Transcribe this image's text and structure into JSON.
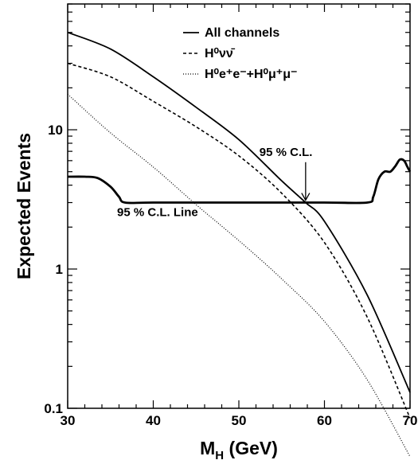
{
  "chart_data": {
    "type": "line",
    "xlabel_main": "M",
    "xlabel_sub": "H",
    "xlabel_rest": " (GeV)",
    "ylabel": "Expected Events",
    "xlim": [
      30,
      70
    ],
    "ylim": [
      0.1,
      80
    ],
    "yscale": "log",
    "grid": false,
    "legend_position": "top-right",
    "x_ticks": [
      30,
      40,
      50,
      60,
      70
    ],
    "x_tick_labels": [
      "30",
      "40",
      "50",
      "60",
      "70"
    ],
    "y_ticks": [
      0.1,
      1,
      10
    ],
    "y_tick_labels": [
      "0.1",
      "1",
      "10"
    ],
    "series": [
      {
        "name": "All channels",
        "style": "solid",
        "x": [
          30,
          35,
          40,
          45,
          50,
          55,
          57.8,
          60,
          65,
          70
        ],
        "y": [
          50,
          38,
          24,
          14.5,
          8.5,
          4.3,
          3.0,
          2.2,
          0.65,
          0.13
        ]
      },
      {
        "name": "H⁰νν̄",
        "style": "dashed",
        "x": [
          30,
          35,
          40,
          45,
          50,
          55,
          60,
          65,
          70
        ],
        "y": [
          30,
          24,
          16,
          10.5,
          6.5,
          3.5,
          1.55,
          0.45,
          0.085
        ]
      },
      {
        "name": "H⁰e⁺e⁻+H⁰μ⁺μ⁻",
        "style": "dotted",
        "x": [
          30,
          35,
          40,
          45,
          50,
          55,
          60,
          65,
          70
        ],
        "y": [
          18,
          9.5,
          5.4,
          2.9,
          1.6,
          0.85,
          0.42,
          0.16,
          0.045
        ]
      },
      {
        "name": "95 % C.L. Line",
        "style": "thick",
        "x": [
          30,
          32,
          33.5,
          35,
          36,
          36.7,
          40,
          50,
          60,
          65,
          65.7,
          66.3,
          67,
          67.7,
          68.3,
          68.8,
          69.3,
          69.7,
          70
        ],
        "y": [
          4.6,
          4.6,
          4.5,
          3.9,
          3.3,
          3.0,
          3.0,
          3.0,
          3.0,
          3.0,
          3.3,
          4.4,
          5.0,
          5.0,
          5.5,
          6.1,
          6.0,
          5.4,
          5.0
        ]
      }
    ],
    "annotations": [
      {
        "text": "95 % C.L. Line",
        "x": 40.5,
        "y": 2.4
      },
      {
        "text": "95 % C.L.",
        "x": 55.5,
        "y": 6.5,
        "arrow_to": {
          "x": 57.8,
          "y": 3.0
        }
      }
    ]
  }
}
